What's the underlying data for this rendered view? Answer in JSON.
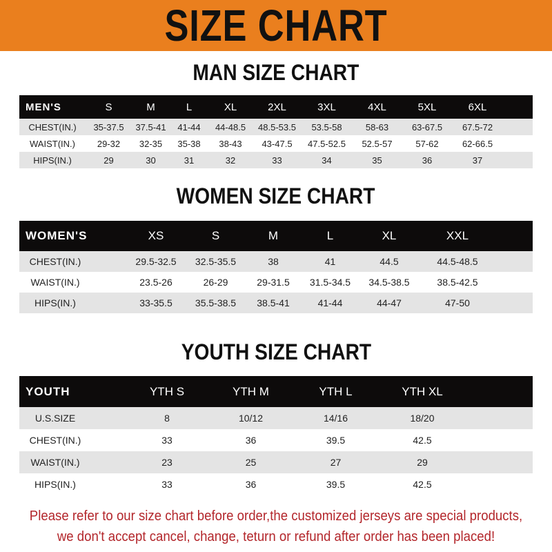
{
  "title": "SIZE CHART",
  "colors": {
    "banner": "#ea7f1e",
    "header_row": "#0d0b0b",
    "stripe": "#e4e4e4",
    "notice": "#b3262b"
  },
  "men": {
    "title": "MAN SIZE CHART",
    "header": [
      "MEN'S",
      "S",
      "M",
      "L",
      "XL",
      "2XL",
      "3XL",
      "4XL",
      "5XL",
      "6XL"
    ],
    "rows": [
      [
        "CHEST(IN.)",
        "35-37.5",
        "37.5-41",
        "41-44",
        "44-48.5",
        "48.5-53.5",
        "53.5-58",
        "58-63",
        "63-67.5",
        "67.5-72"
      ],
      [
        "WAIST(IN.)",
        "29-32",
        "32-35",
        "35-38",
        "38-43",
        "43-47.5",
        "47.5-52.5",
        "52.5-57",
        "57-62",
        "62-66.5"
      ],
      [
        "HIPS(IN.)",
        "29",
        "30",
        "31",
        "32",
        "33",
        "34",
        "35",
        "36",
        "37"
      ]
    ]
  },
  "women": {
    "title": "WOMEN SIZE CHART",
    "header": [
      "WOMEN'S",
      "XS",
      "S",
      "M",
      "L",
      "XL",
      "XXL"
    ],
    "rows": [
      [
        "CHEST(IN.)",
        "29.5-32.5",
        "32.5-35.5",
        "38",
        "41",
        "44.5",
        "44.5-48.5"
      ],
      [
        "WAIST(IN.)",
        "23.5-26",
        "26-29",
        "29-31.5",
        "31.5-34.5",
        "34.5-38.5",
        "38.5-42.5"
      ],
      [
        "HIPS(IN.)",
        "33-35.5",
        "35.5-38.5",
        "38.5-41",
        "41-44",
        "44-47",
        "47-50"
      ]
    ]
  },
  "youth": {
    "title": "YOUTH SIZE CHART",
    "header": [
      "YOUTH",
      "YTH S",
      "YTH M",
      "YTH L",
      "YTH XL"
    ],
    "rows": [
      [
        "U.S.SIZE",
        "8",
        "10/12",
        "14/16",
        "18/20"
      ],
      [
        "CHEST(IN.)",
        "33",
        "36",
        "39.5",
        "42.5"
      ],
      [
        "WAIST(IN.)",
        "23",
        "25",
        "27",
        "29"
      ],
      [
        "HIPS(IN.)",
        "33",
        "36",
        "39.5",
        "42.5"
      ]
    ]
  },
  "notice": {
    "line1": "Please refer to our size chart before order,the customized jerseys are special products,",
    "line2": "we don't accept cancel, change, teturn or refund after order has been placed!"
  }
}
